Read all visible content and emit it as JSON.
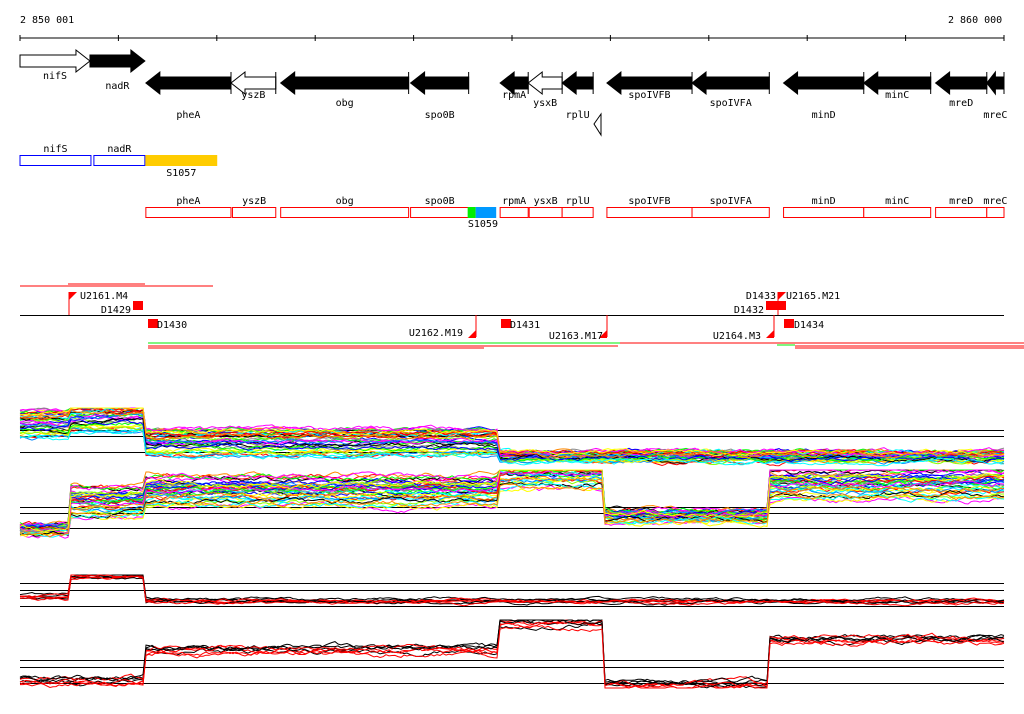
{
  "ruler": {
    "start_label": "2 850 001",
    "end_label": "2 860 000",
    "start": 2850001,
    "end": 2860000
  },
  "genes": [
    {
      "name": "nifS",
      "start": 2850001,
      "end": 2850712,
      "strand": "+",
      "fill": "white",
      "row": 0
    },
    {
      "name": "nadR",
      "start": 2850712,
      "end": 2851270,
      "strand": "+",
      "fill": "black",
      "row": 1
    },
    {
      "name": "pheA",
      "start": 2851280,
      "end": 2852145,
      "strand": "-",
      "fill": "black",
      "row": 2
    },
    {
      "name": "yszB",
      "start": 2852145,
      "end": 2852600,
      "strand": "-",
      "fill": "white",
      "row": 0
    },
    {
      "name": "obg",
      "start": 2852650,
      "end": 2853950,
      "strand": "-",
      "fill": "black",
      "row": 1
    },
    {
      "name": "spo0B",
      "start": 2853970,
      "end": 2854560,
      "strand": "-",
      "fill": "black",
      "row": 2
    },
    {
      "name": "rpmA",
      "start": 2854880,
      "end": 2855165,
      "strand": "-",
      "fill": "black",
      "row": 0
    },
    {
      "name": "ysxB",
      "start": 2855165,
      "end": 2855510,
      "strand": "-",
      "fill": "white",
      "row": 1
    },
    {
      "name": "rplU",
      "start": 2855510,
      "end": 2855825,
      "strand": "-",
      "fill": "black",
      "row": 2
    },
    {
      "name": "spoIVFB",
      "start": 2855965,
      "end": 2856830,
      "strand": "-",
      "fill": "black",
      "row": 0
    },
    {
      "name": "spoIVFA",
      "start": 2856830,
      "end": 2857615,
      "strand": "-",
      "fill": "black",
      "row": 1
    },
    {
      "name": "minD",
      "start": 2857760,
      "end": 2858575,
      "strand": "-",
      "fill": "black",
      "row": 2
    },
    {
      "name": "minC",
      "start": 2858575,
      "end": 2859255,
      "strand": "-",
      "fill": "black",
      "row": 0
    },
    {
      "name": "mreD",
      "start": 2859305,
      "end": 2859825,
      "strand": "-",
      "fill": "black",
      "row": 1
    },
    {
      "name": "mreC",
      "start": 2859825,
      "end": 2860000,
      "strand": "-",
      "fill": "black",
      "row": 2
    }
  ],
  "operons_top": [
    {
      "name": "nifS",
      "start": 2850001,
      "end": 2850722,
      "color": "#0000ff",
      "label_pos": "above"
    },
    {
      "name": "nadR",
      "start": 2850752,
      "end": 2851270,
      "color": "#0000ff",
      "label_pos": "above"
    },
    {
      "name": "S1057",
      "start": 2851280,
      "end": 2852000,
      "color": "#ffcc00",
      "filled": true,
      "label_pos": "below"
    }
  ],
  "operons_bottom": [
    {
      "name": "pheA",
      "start": 2851280,
      "end": 2852145
    },
    {
      "name": "yszB",
      "start": 2852160,
      "end": 2852600
    },
    {
      "name": "obg",
      "start": 2852650,
      "end": 2853950
    },
    {
      "name": "spo0B",
      "start": 2853970,
      "end": 2854560
    },
    {
      "name": "rpmA",
      "start": 2854880,
      "end": 2855165
    },
    {
      "name": "ysxB",
      "start": 2855175,
      "end": 2855510
    },
    {
      "name": "rplU",
      "start": 2855510,
      "end": 2855825
    },
    {
      "name": "spoIVFB",
      "start": 2855965,
      "end": 2856830
    },
    {
      "name": "spoIVFA",
      "start": 2856830,
      "end": 2857615
    },
    {
      "name": "minD",
      "start": 2857760,
      "end": 2858575
    },
    {
      "name": "minC",
      "start": 2858575,
      "end": 2859255
    },
    {
      "name": "mreD",
      "start": 2859305,
      "end": 2859825
    },
    {
      "name": "mreC",
      "start": 2859825,
      "end": 2860000
    }
  ],
  "segment_S1059": {
    "name": "S1059",
    "start": 2854560,
    "end": 2854850
  },
  "features": [
    {
      "name": "U2161.M4",
      "pos": 2850500,
      "side": "up"
    },
    {
      "name": "D1429",
      "pos": 2851200,
      "side": "up"
    },
    {
      "name": "D1430",
      "pos": 2851300,
      "side": "down"
    },
    {
      "name": "U2162.M19",
      "pos": 2854620,
      "side": "down"
    },
    {
      "name": "D1431",
      "pos": 2854900,
      "side": "down"
    },
    {
      "name": "U2163.M17",
      "pos": 2855930,
      "side": "down"
    },
    {
      "name": "D1432",
      "pos": 2857600,
      "side": "up"
    },
    {
      "name": "D1433",
      "pos": 2857700,
      "side": "up"
    },
    {
      "name": "U2164.M3",
      "pos": 2857600,
      "side": "down"
    },
    {
      "name": "U2165.M21",
      "pos": 2857680,
      "side": "up"
    },
    {
      "name": "D1434",
      "pos": 2857800,
      "side": "down"
    }
  ],
  "profiles": {
    "breakpoints": [
      2850001,
      2850500,
      2851270,
      2854850,
      2855930,
      2857620,
      2860000
    ],
    "panel1_levels": [
      0.75,
      0.85,
      0.45,
      0.2,
      0.2,
      0.2
    ],
    "panel2_levels": [
      0.15,
      0.55,
      0.7,
      0.95,
      0.35,
      0.8
    ],
    "panel3_levels": [
      0.45,
      0.95,
      0.35,
      0.35,
      0.35,
      0.35
    ],
    "panel4_levels": [
      0.1,
      0.1,
      0.55,
      0.95,
      0.05,
      0.7
    ],
    "palette": [
      "#ff0000",
      "#00ff00",
      "#0000ff",
      "#ff00ff",
      "#00ffff",
      "#ffff00",
      "#ff8800",
      "#888888",
      "#0088ff",
      "#88ff00",
      "#000000"
    ]
  }
}
